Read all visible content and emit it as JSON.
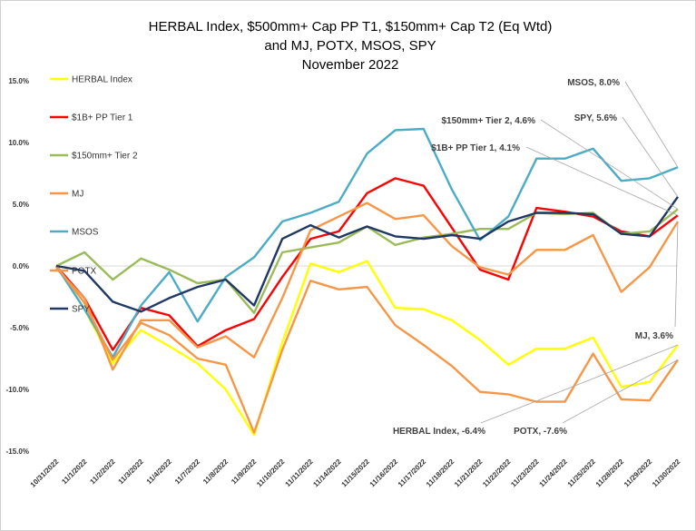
{
  "chart_data": {
    "type": "line",
    "title_lines": [
      "HERBAL Index, $500mm+ Cap PP T1, $150mm+ Cap T2  (Eq Wtd)",
      "and MJ, POTX, MSOS, SPY",
      "November 2022"
    ],
    "ylim": [
      -15,
      15
    ],
    "yticks": [
      "15.0%",
      "10.0%",
      "5.0%",
      "0.0%",
      "-5.0%",
      "-10.0%",
      "-15.0%"
    ],
    "ytick_values": [
      15,
      10,
      5,
      0,
      -5,
      -10,
      -15
    ],
    "categories": [
      "10/31/2022",
      "11/1/2022",
      "11/2/2022",
      "11/3/2022",
      "11/4/2022",
      "11/7/2022",
      "11/8/2022",
      "11/9/2022",
      "11/10/2022",
      "11/11/2022",
      "11/14/2022",
      "11/15/2022",
      "11/16/2022",
      "11/17/2022",
      "11/18/2022",
      "11/21/2022",
      "11/22/2022",
      "11/23/2022",
      "11/24/2022",
      "11/25/2022",
      "11/28/2022",
      "11/29/2022",
      "11/30/2022"
    ],
    "grid": false,
    "legend_position": "left",
    "series": [
      {
        "name": "HERBAL Index",
        "color": "#ffff00",
        "values": [
          0,
          -3.5,
          -7.9,
          -5.2,
          -6.5,
          -7.9,
          -10.0,
          -13.7,
          -6.2,
          0.2,
          -0.5,
          0.4,
          -3.4,
          -3.5,
          -4.4,
          -6.0,
          -8.0,
          -6.7,
          -6.7,
          -5.8,
          -9.8,
          -9.4,
          -6.4
        ]
      },
      {
        "name": "$1B+ PP Tier 1",
        "color": "#ff0000",
        "values": [
          0,
          -2.6,
          -6.8,
          -3.4,
          -4.0,
          -6.5,
          -5.2,
          -4.3,
          -0.9,
          2.2,
          2.8,
          5.9,
          7.1,
          6.5,
          3.1,
          -0.3,
          -1.1,
          4.7,
          4.4,
          4.0,
          2.8,
          2.4,
          4.1
        ]
      },
      {
        "name": "$150mm+ Tier 2",
        "color": "#9bbb59",
        "values": [
          0,
          1.1,
          -1.1,
          0.6,
          -0.3,
          -1.4,
          -1.1,
          -3.8,
          1.1,
          1.5,
          1.9,
          3.2,
          1.7,
          2.3,
          2.6,
          3.0,
          3.0,
          4.3,
          4.2,
          4.3,
          2.6,
          2.8,
          4.6
        ]
      },
      {
        "name": "MJ",
        "color": "#f79646",
        "values": [
          -0.2,
          -2.6,
          -8.4,
          -4.4,
          -4.4,
          -6.6,
          -5.7,
          -7.4,
          -2.6,
          2.9,
          4.0,
          5.1,
          3.8,
          4.1,
          1.6,
          -0.1,
          -0.7,
          1.3,
          1.3,
          2.5,
          -2.1,
          -0.1,
          3.6
        ]
      },
      {
        "name": "MSOS",
        "color": "#4bacc6",
        "values": [
          0,
          -3.5,
          -7.4,
          -3.2,
          -0.5,
          -4.5,
          -0.9,
          0.7,
          3.6,
          4.3,
          5.2,
          9.1,
          11.0,
          11.1,
          6.2,
          2.1,
          4.0,
          8.7,
          8.7,
          9.5,
          6.9,
          7.1,
          8.0
        ]
      },
      {
        "name": "POTX",
        "color": "#f79646",
        "values": [
          0,
          -3.0,
          -7.6,
          -4.6,
          -5.6,
          -7.5,
          -8.0,
          -13.5,
          -6.8,
          -1.2,
          -1.9,
          -1.7,
          -4.8,
          -6.4,
          -8.1,
          -10.2,
          -10.4,
          -11.0,
          -11.0,
          -7.1,
          -10.8,
          -10.9,
          -7.6
        ]
      },
      {
        "name": "SPY",
        "color": "#1f3864",
        "values": [
          0,
          -0.4,
          -2.9,
          -3.7,
          -2.6,
          -1.7,
          -1.1,
          -3.2,
          2.2,
          3.3,
          2.3,
          3.2,
          2.4,
          2.2,
          2.5,
          2.2,
          3.6,
          4.3,
          4.3,
          4.2,
          2.6,
          2.4,
          5.6
        ]
      }
    ],
    "annotations": [
      {
        "label": "MSOS, 8.0%",
        "series": "MSOS"
      },
      {
        "label": "SPY, 5.6%",
        "series": "SPY"
      },
      {
        "label": "$150mm+ Tier 2, 4.6%",
        "series": "$150mm+ Tier 2"
      },
      {
        "label": "$1B+ PP Tier 1, 4.1%",
        "series": "$1B+ PP Tier 1"
      },
      {
        "label": "MJ, 3.6%",
        "series": "MJ"
      },
      {
        "label": "HERBAL Index, -6.4%",
        "series": "HERBAL Index"
      },
      {
        "label": "POTX, -7.6%",
        "series": "POTX"
      }
    ]
  }
}
